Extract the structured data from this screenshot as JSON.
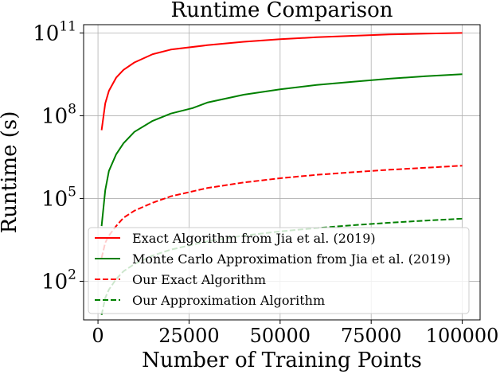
{
  "chart_data": {
    "type": "line",
    "title": "Runtime Comparison",
    "xlabel": "Number of Training Points",
    "ylabel": "Runtime (s)",
    "xlim": [
      -3950,
      104900
    ],
    "ylim_log10": [
      0.6,
      11.3
    ],
    "yscale": "log",
    "grid": true,
    "legend_position": "lower-left",
    "x_ticks": [
      {
        "value": 0,
        "label": "0"
      },
      {
        "value": 25000,
        "label": "25000"
      },
      {
        "value": 50000,
        "label": "50000"
      },
      {
        "value": 75000,
        "label": "75000"
      },
      {
        "value": 100000,
        "label": "100000"
      }
    ],
    "y_ticks": [
      {
        "exp": 2,
        "base": "10",
        "sup": "2"
      },
      {
        "exp": 5,
        "base": "10",
        "sup": "5"
      },
      {
        "exp": 8,
        "base": "10",
        "sup": "8"
      },
      {
        "exp": 11,
        "base": "10",
        "sup": "11"
      }
    ],
    "series": [
      {
        "name": "Exact Algorithm from Jia et al. (2019)",
        "color": "#ff0000",
        "dash": "solid",
        "x": [
          1000,
          2000,
          3000,
          5000,
          7000,
          10000,
          15000,
          20000,
          30000,
          40000,
          50000,
          60000,
          70000,
          80000,
          90000,
          100000
        ],
        "y": [
          30000000.0,
          280000000.0,
          800000000.0,
          2400000000.0,
          4600000000.0,
          8500000000.0,
          17000000000.0,
          25000000000.0,
          36000000000.0,
          48000000000.0,
          59000000000.0,
          70000000000.0,
          79000000000.0,
          88000000000.0,
          95000000000.0,
          100000000000.0
        ]
      },
      {
        "name": "Monte Carlo Approximation from Jia et al. (2019)",
        "color": "#008000",
        "dash": "solid",
        "x": [
          1000,
          2000,
          3000,
          5000,
          7000,
          10000,
          15000,
          20000,
          26000,
          30000,
          40000,
          50000,
          60000,
          70000,
          80000,
          90000,
          100000
        ],
        "y": [
          10000.0,
          200000.0,
          1000000.0,
          4000000.0,
          10000000.0,
          26000000.0,
          65000000.0,
          120000000.0,
          190000000.0,
          300000000.0,
          580000000.0,
          900000000.0,
          1300000000.0,
          1700000000.0,
          2200000000.0,
          2700000000.0,
          3200000000.0
        ]
      },
      {
        "name": "Our Exact Algorithm",
        "color": "#ff0000",
        "dash": "dashed",
        "x": [
          1000,
          2000,
          3000,
          5000,
          7000,
          10000,
          15000,
          20000,
          30000,
          40000,
          50000,
          60000,
          70000,
          80000,
          90000,
          100000
        ],
        "y": [
          700,
          2500,
          4500,
          10000.0,
          20000.0,
          36000.0,
          70000.0,
          120000.0,
          240000.0,
          380000.0,
          540000.0,
          720000.0,
          900000.0,
          1100000.0,
          1300000.0,
          1550000.0
        ]
      },
      {
        "name": "Our Approximation Algorithm",
        "color": "#008000",
        "dash": "dashed",
        "x": [
          1000,
          2000,
          3000,
          5000,
          7000,
          10000,
          15000,
          20000,
          30000,
          40000,
          50000,
          60000,
          70000,
          80000,
          90000,
          100000
        ],
        "y": [
          6,
          25,
          50,
          120,
          230,
          420,
          850,
          1400,
          2800,
          4500,
          6400,
          8500,
          10800.0,
          13200.0,
          15800.0,
          18500.0
        ]
      }
    ]
  }
}
